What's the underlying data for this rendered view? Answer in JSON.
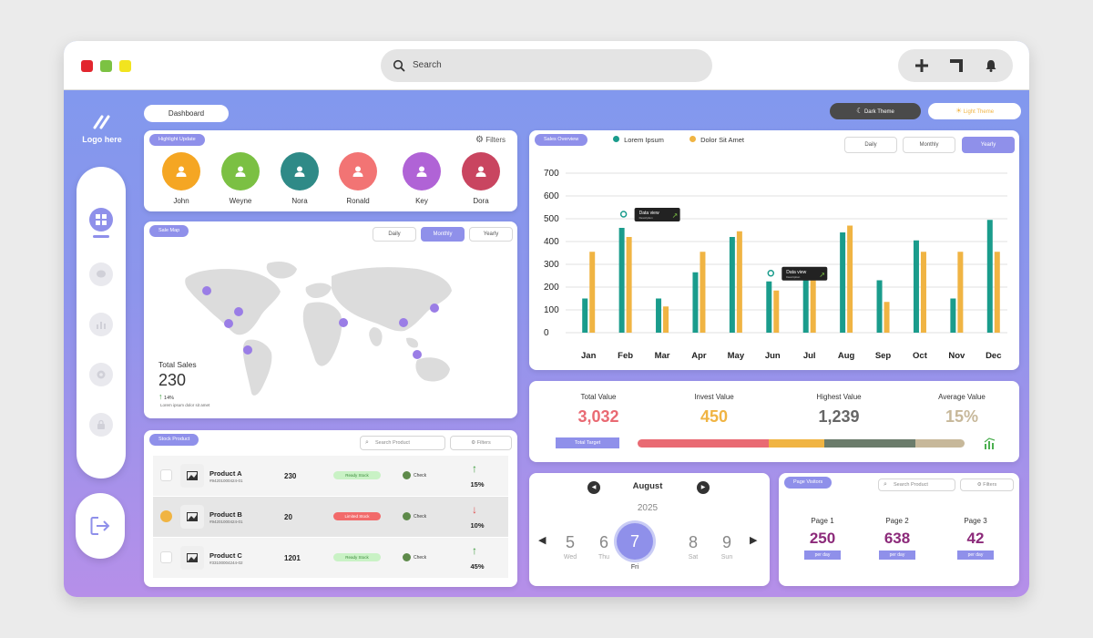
{
  "colors": {
    "accent": "#8f90ea",
    "teal": "#1a9c8c",
    "orange": "#f0b443"
  },
  "topbar": {
    "search_placeholder": "Search",
    "icons": [
      "plus-icon",
      "window-icon",
      "bell-icon"
    ]
  },
  "sidebar": {
    "logo": "Logo here"
  },
  "header": {
    "breadcrumb": "Dashboard",
    "dark_theme": "Dark Theme",
    "light_theme": "Light Theme"
  },
  "highlight": {
    "tag": "Highlight Update",
    "filters": "Filters",
    "people": [
      {
        "name": "John",
        "color": "#f5a623"
      },
      {
        "name": "Weyne",
        "color": "#7bc043"
      },
      {
        "name": "Nora",
        "color": "#2f8a87"
      },
      {
        "name": "Ronald",
        "color": "#f27474"
      },
      {
        "name": "Key",
        "color": "#b063d6"
      },
      {
        "name": "Dora",
        "color": "#c94560"
      }
    ]
  },
  "salemap": {
    "tag": "Sale Map",
    "tabs": [
      "Daily",
      "Monthly",
      "Yearly"
    ],
    "total_label": "Total Sales",
    "total_value": "230",
    "change": "14%",
    "note": "Lorem ipsum dolor sit amet"
  },
  "stock": {
    "tag": "Stock Product",
    "search_placeholder": "Search Product",
    "filters": "Filters",
    "rows": [
      {
        "name": "Product A",
        "code": "#94201000424-01",
        "qty": "230",
        "status": "Ready Stock",
        "check": "Check",
        "pct": "15%",
        "dir": "up"
      },
      {
        "name": "Product B",
        "code": "#94201000424-01",
        "qty": "20",
        "status": "Limited Stock",
        "check": "Check",
        "pct": "10%",
        "dir": "down"
      },
      {
        "name": "Product C",
        "code": "#33100004244-02",
        "qty": "1201",
        "status": "Ready Stock",
        "check": "Check",
        "pct": "45%",
        "dir": "up"
      }
    ]
  },
  "sales": {
    "tag": "Sales Overview",
    "tabs": [
      "Daily",
      "Monthly",
      "Yearly"
    ],
    "tooltip_title": "Data view",
    "tooltip_sub": "Description"
  },
  "chart_data": {
    "type": "bar",
    "categories": [
      "Jan",
      "Feb",
      "Mar",
      "Apr",
      "May",
      "Jun",
      "Jul",
      "Aug",
      "Sep",
      "Oct",
      "Nov",
      "Dec"
    ],
    "series": [
      {
        "name": "Lorem Ipsum",
        "values": [
          150,
          460,
          150,
          265,
          420,
          225,
          280,
          440,
          230,
          405,
          150,
          495
        ]
      },
      {
        "name": "Dolor Sit Amet",
        "values": [
          355,
          420,
          115,
          355,
          445,
          185,
          260,
          470,
          135,
          355,
          355,
          355
        ]
      }
    ],
    "yticks": [
      0,
      100,
      200,
      300,
      400,
      500,
      600,
      700
    ],
    "ylim": [
      0,
      700
    ],
    "legend": "top",
    "grid": true
  },
  "values": {
    "items": [
      {
        "label": "Total Value",
        "value": "3,032",
        "color": "#e96a73"
      },
      {
        "label": "Invest Value",
        "value": "450",
        "color": "#f0b443"
      },
      {
        "label": "Highest Value",
        "value": "1,239",
        "color": "#666666"
      },
      {
        "label": "Average Value",
        "value": "15%",
        "color": "#c7b89a"
      }
    ],
    "target_label": "Total Target"
  },
  "calendar": {
    "month": "August",
    "year": "2025",
    "days": [
      {
        "num": "5",
        "name": "Wed"
      },
      {
        "num": "6",
        "name": "Thu"
      },
      {
        "num": "7",
        "name": "Fri"
      },
      {
        "num": "8",
        "name": "Sat"
      },
      {
        "num": "9",
        "name": "Sun"
      }
    ]
  },
  "visitors": {
    "tag": "Page Visitors",
    "search_placeholder": "Search Product",
    "filters": "Filters",
    "pages": [
      {
        "label": "Page 1",
        "value": "250",
        "unit": "per day"
      },
      {
        "label": "Page 2",
        "value": "638",
        "unit": "per day"
      },
      {
        "label": "Page 3",
        "value": "42",
        "unit": "per day"
      }
    ]
  }
}
